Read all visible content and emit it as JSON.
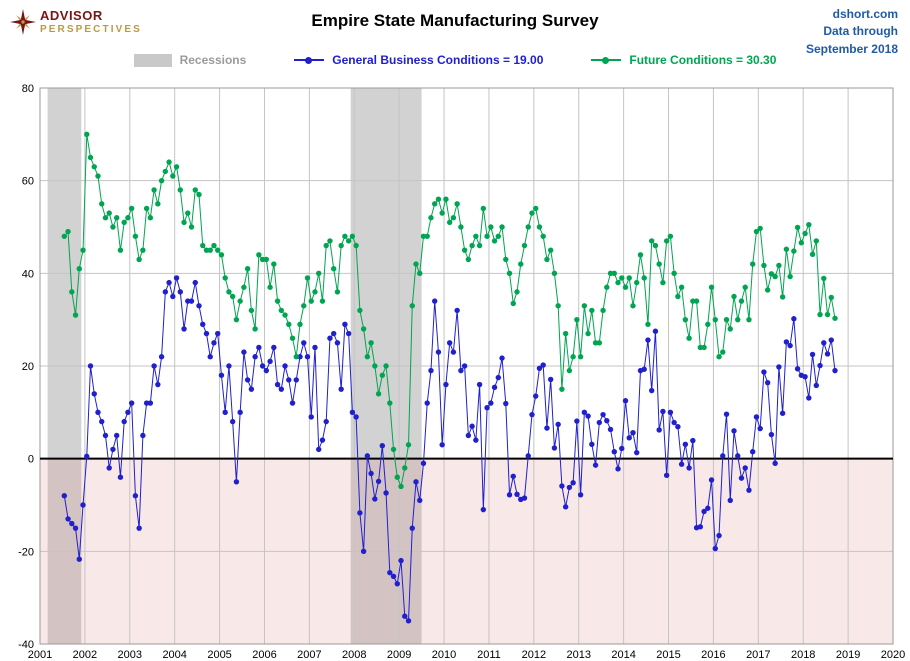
{
  "header": {
    "logo": {
      "line1": "ADVISOR",
      "line2": "PERSPECTIVES"
    },
    "title": "Empire State Manufacturing Survey",
    "source": {
      "line1": "dshort.com",
      "line2": "Data through",
      "line3": "September 2018"
    }
  },
  "legend": {
    "recessions_label": "Recessions",
    "series1_label": "General Business Conditions = 19.00",
    "series2_label": "Future Conditions = 30.30"
  },
  "chart_data": {
    "type": "line",
    "title": "Empire State Manufacturing Survey",
    "xlabel": "",
    "ylabel": "",
    "x_min": 2001,
    "x_max": 2020,
    "y_min": -40,
    "y_max": 80,
    "y_ticks": [
      -40,
      -20,
      0,
      20,
      40,
      60,
      80
    ],
    "x_ticks": [
      2001,
      2002,
      2003,
      2004,
      2005,
      2006,
      2007,
      2008,
      2009,
      2010,
      2011,
      2012,
      2013,
      2014,
      2015,
      2016,
      2017,
      2018,
      2019,
      2020
    ],
    "grid": true,
    "legend_position": "top",
    "start_year": 2001,
    "start_month": 7,
    "recessions": [
      {
        "start": 2001.17,
        "end": 2001.92
      },
      {
        "start": 2007.92,
        "end": 2009.5
      }
    ],
    "colors": {
      "recession_band": "#d2d2d2",
      "negative_region": "rgba(222,128,128,0.18)",
      "gridline": "#c4c4c4",
      "plot_border": "#9a9a9a",
      "zero_line": "#000000"
    },
    "series": [
      {
        "name": "General Business Conditions",
        "color": "#2020CD",
        "last_value": 19.0,
        "values": [
          -8,
          -13,
          -14,
          -15,
          -21.7,
          -10,
          0.5,
          20,
          14,
          10,
          8,
          5,
          -2,
          2,
          5,
          -4,
          8,
          10,
          12,
          -8,
          -15,
          5,
          12,
          12,
          20,
          16,
          22,
          36,
          38,
          35,
          39,
          36,
          28,
          34,
          34,
          38,
          33,
          29,
          27,
          22,
          25,
          27,
          18,
          10,
          20,
          8,
          -5,
          10,
          23,
          17,
          15,
          22,
          24,
          20,
          19,
          21,
          24,
          16,
          15,
          20,
          17,
          12,
          17,
          22,
          25,
          22,
          9,
          24,
          2,
          4,
          8,
          26,
          27,
          25,
          15,
          29,
          27,
          10,
          9,
          -11.7,
          -20,
          0.6,
          -3.2,
          -8.7,
          -4.9,
          2.8,
          -7.4,
          -24.6,
          -25.4,
          -27,
          -22,
          -34,
          -35,
          -15,
          -5,
          -9,
          -1,
          12,
          19,
          34,
          23,
          3,
          16,
          25,
          23,
          32,
          19,
          20,
          5,
          7,
          4,
          16,
          -11,
          11,
          12,
          15.4,
          17.5,
          21.7,
          11.9,
          -7.8,
          -3.8,
          -7.7,
          -8.8,
          -8.5,
          0.6,
          9.5,
          13.5,
          19.5,
          20.2,
          6.6,
          17.1,
          2.3,
          7.4,
          -5.9,
          -10.4,
          -6.2,
          -5.2,
          8.1,
          -7.8,
          10,
          9.2,
          3.1,
          -1.4,
          7.8,
          9.5,
          8.2,
          6.3,
          1.5,
          -2.2,
          2.2,
          12.5,
          4.5,
          5.6,
          1.3,
          19,
          19.3,
          25.6,
          14.7,
          27.5,
          6.2,
          10.2,
          -3.6,
          10,
          7.8,
          6.9,
          -1.2,
          3.1,
          -2,
          3.9,
          -14.9,
          -14.7,
          -11.4,
          -10.7,
          -4.6,
          -19.4,
          -16.6,
          0.6,
          9.6,
          -9,
          6,
          0.6,
          -4.2,
          -2,
          -6.8,
          1.5,
          9,
          6.5,
          18.7,
          16.4,
          5.2,
          -1,
          19.8,
          9.8,
          25.2,
          24.4,
          30.2,
          19.4,
          18,
          17.7,
          13.1,
          22.5,
          15.8,
          20.1,
          25,
          22.6,
          25.6,
          19
        ]
      },
      {
        "name": "Future Conditions",
        "color": "#00A551",
        "last_value": 30.3,
        "values": [
          48,
          49,
          36,
          31,
          41,
          45,
          70,
          65,
          63,
          61,
          55,
          52,
          53,
          50,
          52,
          45,
          51,
          52,
          54,
          48,
          43,
          45,
          54,
          52,
          58,
          55,
          60,
          62,
          64,
          61,
          63,
          58,
          51,
          53,
          50,
          58,
          57,
          46,
          45,
          45,
          46,
          45,
          44,
          39,
          36,
          35,
          30,
          34,
          37,
          41,
          32,
          28,
          44,
          43,
          43,
          37,
          42,
          34,
          32,
          31,
          29,
          26,
          22,
          29,
          33,
          39,
          34,
          36,
          40,
          34,
          46,
          47,
          41,
          36,
          46,
          48,
          47,
          48,
          46,
          32,
          28,
          22,
          25,
          20,
          14,
          18,
          20,
          12,
          2,
          -4,
          -6,
          -2,
          3,
          33,
          42,
          40,
          48,
          48,
          52,
          55,
          56,
          53,
          56,
          51,
          52,
          55,
          50,
          45,
          43,
          46,
          48,
          46,
          54,
          48,
          50,
          47,
          48,
          50,
          43,
          40,
          33.5,
          36,
          42,
          46,
          50,
          53,
          54,
          50,
          48,
          43,
          45,
          40,
          33,
          15,
          27,
          19,
          22,
          30,
          22,
          33,
          27,
          32,
          25,
          25,
          32,
          37,
          40,
          40,
          38,
          39,
          37,
          39,
          33,
          38,
          44,
          39,
          29,
          47,
          46,
          42,
          38,
          47,
          48,
          40,
          35,
          37,
          30,
          26,
          34,
          34,
          24,
          24,
          29,
          37,
          30,
          22,
          23,
          30,
          28,
          35,
          30,
          34,
          37,
          30,
          42,
          49,
          49.7,
          41.7,
          36.4,
          39.9,
          39.3,
          41.7,
          34.9,
          45.2,
          39.3,
          44.8,
          49.9,
          46.6,
          48.6,
          50.5,
          44.1,
          47,
          31.1,
          38.9,
          31.1,
          34.8,
          30.3
        ]
      }
    ]
  }
}
